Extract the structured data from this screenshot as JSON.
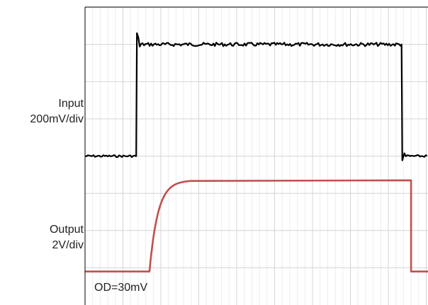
{
  "chart_data": {
    "type": "line",
    "title": "",
    "xlabel": "",
    "ylabel": "",
    "grid": {
      "major_divisions_x": 10,
      "major_divisions_y": 8,
      "minor_per_major_x": 5,
      "visible": true
    },
    "channels": [
      {
        "name": "Input",
        "scale_label": "200mV/div",
        "color": "#000000",
        "noisy": true,
        "baseline_div": 4.0,
        "high_div": 7.0,
        "rise_div": 1.35,
        "fall_div": 8.35
      },
      {
        "name": "Output",
        "scale_label": "2V/div",
        "color": "#c0504d",
        "noisy": false,
        "baseline_div": 0.9,
        "high_div": 3.35,
        "rise_start_div": 1.7,
        "rise_end_div": 2.8,
        "fall_div": 8.6
      }
    ],
    "annotations": [
      "OD=30mV"
    ]
  },
  "labels": {
    "input_name": "Input",
    "input_scale": "200mV/div",
    "output_name": "Output",
    "output_scale": "2V/div",
    "overdrive": "OD=30mV"
  }
}
